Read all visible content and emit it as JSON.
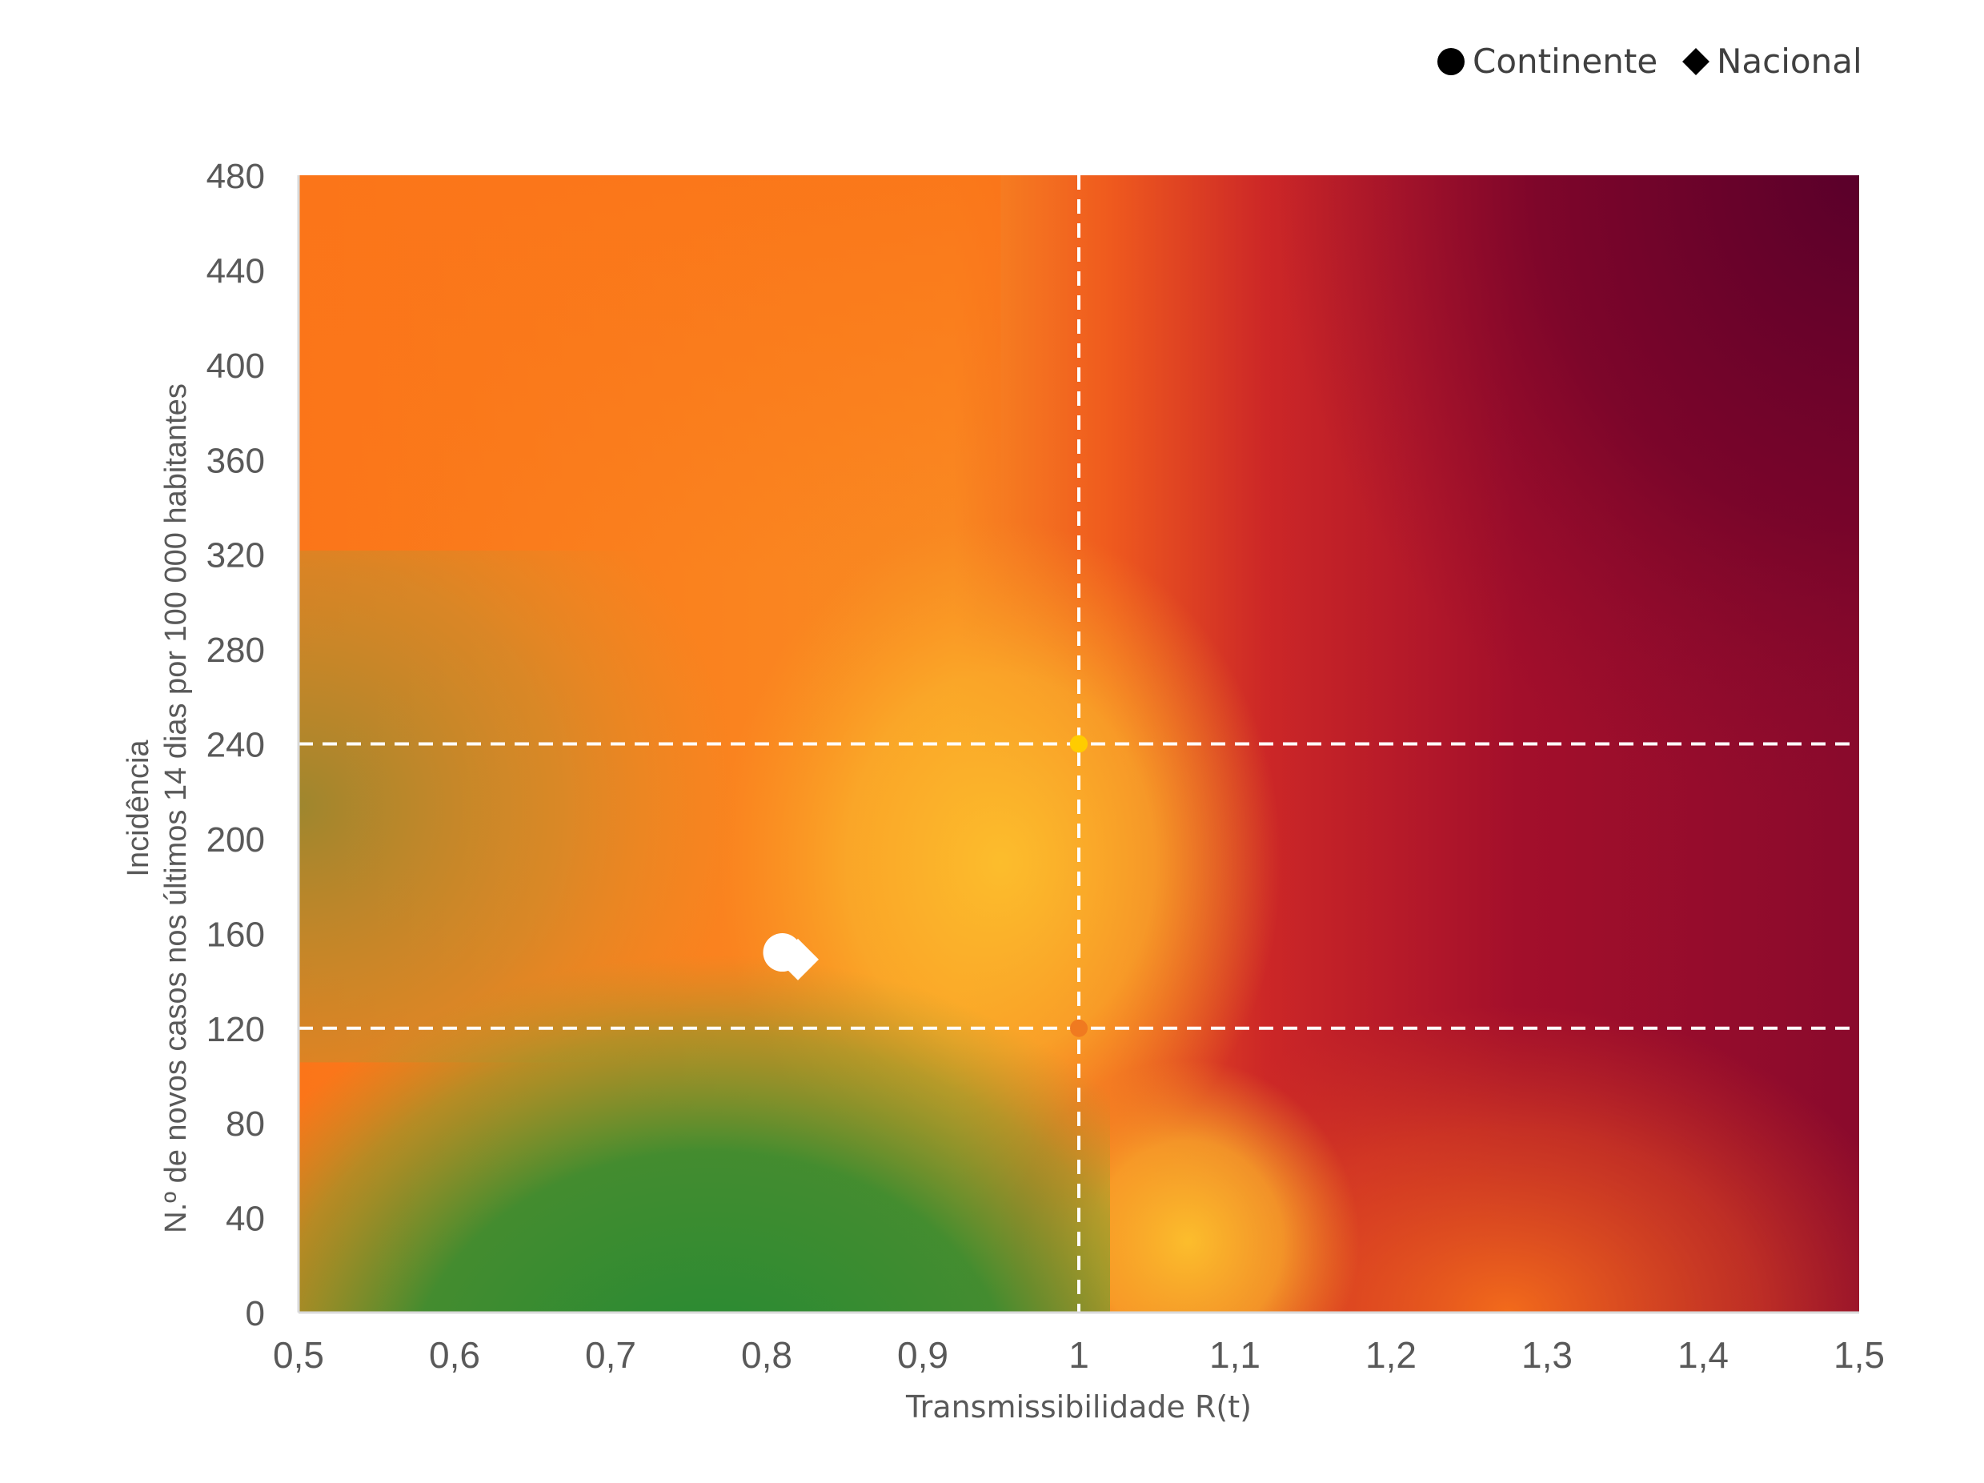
{
  "chart_data": {
    "type": "scatter",
    "title": "",
    "xlabel": "Transmissibilidade R(t)",
    "ylabel_line1": "Incidência",
    "ylabel_line2": "N.º de novos casos nos últimos 14 dias por 100 000 habitantes",
    "xlim": [
      0.5,
      1.5
    ],
    "ylim": [
      0,
      480
    ],
    "x_ticks": [
      0.5,
      0.6,
      0.7,
      0.8,
      0.9,
      1,
      1.1,
      1.2,
      1.3,
      1.4,
      1.5
    ],
    "x_tick_labels": [
      "0,5",
      "0,6",
      "0,7",
      "0,8",
      "0,9",
      "1",
      "1,1",
      "1,2",
      "1,3",
      "1,4",
      "1,5"
    ],
    "y_ticks": [
      0,
      40,
      80,
      120,
      160,
      200,
      240,
      280,
      320,
      360,
      400,
      440,
      480
    ],
    "y_tick_labels": [
      "0",
      "40",
      "80",
      "120",
      "160",
      "200",
      "240",
      "280",
      "320",
      "360",
      "400",
      "440",
      "480"
    ],
    "reference_lines": {
      "vertical_x": 1,
      "horizontal_y": [
        120,
        240
      ],
      "style": "dashed",
      "color": "#ffffff"
    },
    "threshold_markers": [
      {
        "x": 1,
        "y": 240,
        "color": "#ffcc00"
      },
      {
        "x": 1,
        "y": 120,
        "color": "#f07a20"
      }
    ],
    "series": [
      {
        "name": "Continente",
        "marker": "circle",
        "color": "#ffffff",
        "points": [
          {
            "x": 0.81,
            "y": 152
          }
        ]
      },
      {
        "name": "Nacional",
        "marker": "diamond",
        "color": "#ffffff",
        "points": [
          {
            "x": 0.82,
            "y": 149
          }
        ]
      }
    ],
    "legend": {
      "position": "top-right",
      "items": [
        {
          "label": "Continente",
          "marker": "circle",
          "color": "#000000"
        },
        {
          "label": "Nacional",
          "marker": "diamond",
          "color": "#000000"
        }
      ]
    },
    "grid": false,
    "background_colors": {
      "green": "#2b8a34",
      "yellow": "#fbb72b",
      "orange": "#fb7519",
      "red": "#b3142a",
      "dark_red": "#5c002a"
    }
  }
}
